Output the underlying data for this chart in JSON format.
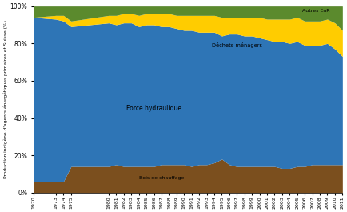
{
  "years": [
    1970,
    1973,
    1974,
    1975,
    1980,
    1981,
    1982,
    1983,
    1984,
    1985,
    1986,
    1987,
    1988,
    1989,
    1990,
    1991,
    1992,
    1993,
    1994,
    1995,
    1996,
    1997,
    1998,
    1999,
    2000,
    2001,
    2002,
    2003,
    2004,
    2005,
    2006,
    2007,
    2008,
    2009,
    2010,
    2011
  ],
  "bois_de_chauffage": [
    6,
    6,
    6,
    14,
    14,
    15,
    14,
    14,
    14,
    14,
    14,
    15,
    15,
    15,
    15,
    14,
    15,
    15,
    16,
    18,
    15,
    14,
    14,
    14,
    14,
    14,
    14,
    13,
    13,
    14,
    14,
    15,
    15,
    15,
    15,
    15
  ],
  "force_hydraulique": [
    88,
    87,
    86,
    75,
    77,
    75,
    77,
    77,
    75,
    76,
    76,
    74,
    74,
    73,
    72,
    73,
    71,
    71,
    70,
    66,
    70,
    71,
    70,
    70,
    69,
    68,
    67,
    68,
    67,
    67,
    65,
    64,
    64,
    65,
    62,
    58
  ],
  "dechets_menagers": [
    0,
    2,
    3,
    3,
    4,
    5,
    5,
    5,
    6,
    6,
    6,
    7,
    7,
    7,
    8,
    8,
    9,
    9,
    9,
    10,
    9,
    9,
    10,
    10,
    11,
    11,
    12,
    12,
    13,
    13,
    13,
    13,
    13,
    13,
    14,
    14
  ],
  "autres_enr": [
    6,
    5,
    5,
    8,
    5,
    5,
    4,
    4,
    5,
    4,
    4,
    4,
    4,
    5,
    5,
    5,
    5,
    5,
    5,
    6,
    6,
    6,
    6,
    6,
    6,
    7,
    7,
    7,
    7,
    6,
    8,
    8,
    8,
    7,
    9,
    13
  ],
  "colors": {
    "bois_de_chauffage": "#7B4F1E",
    "force_hydraulique": "#2E75B6",
    "dechets_menagers": "#FFCC00",
    "autres_enr": "#5B8A2D"
  },
  "labels": {
    "bois_de_chauffage": "Bois de chauffage",
    "force_hydraulique": "Force hydraulique",
    "dechets_menagers": "Déchets ménagers",
    "autres_enr": "Autres EnR"
  },
  "ylabel": "Production indigène d'agents énergétiques primaires et Suisse (%)",
  "background_color": "#FFFFFF",
  "yticks": [
    0,
    20,
    40,
    60,
    80,
    100
  ],
  "ylim": [
    0,
    100
  ],
  "figsize": [
    4.35,
    2.65
  ],
  "dpi": 100
}
